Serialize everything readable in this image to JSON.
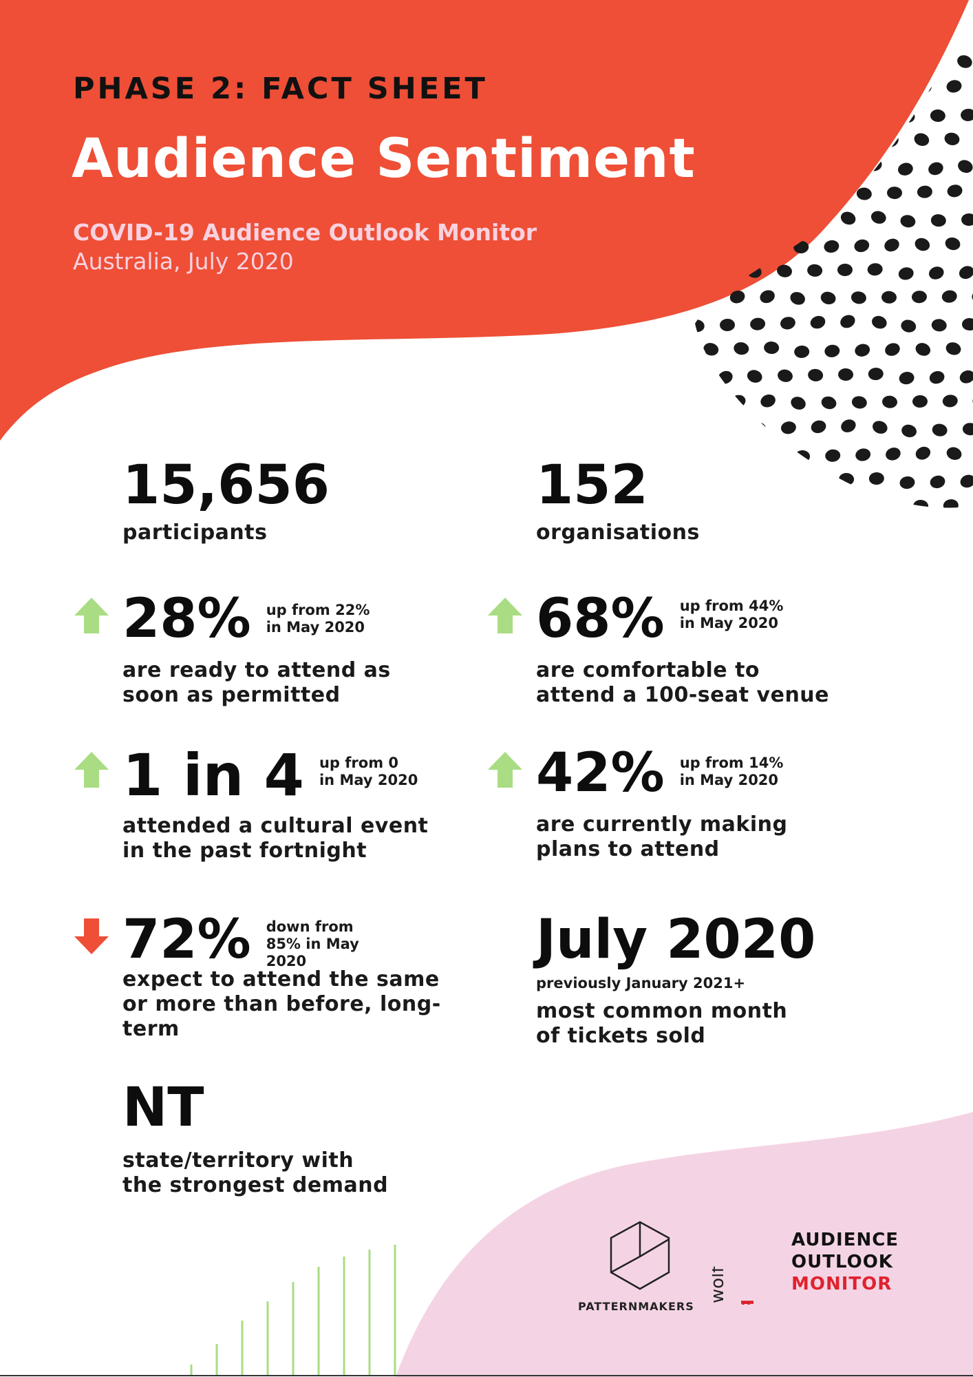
{
  "header": {
    "phase": "PHASE 2: FACT SHEET",
    "title": "Audience Sentiment",
    "subtitle": "COVID-19 Audience Outlook Monitor",
    "date": "Australia, July 2020"
  },
  "colors": {
    "header_bg": "#ee4f36",
    "accent_pink": "#f4d4e4",
    "arrow_up": "#a9dc83",
    "arrow_down": "#ee4f36",
    "text": "#0d0d0d"
  },
  "stats": {
    "participants": {
      "value": "15,656",
      "label": "participants"
    },
    "organisations": {
      "value": "152",
      "label": "organisations"
    },
    "ready": {
      "value": "28%",
      "change": "up from 22%\nin May 2020",
      "label": "are ready to attend as\nsoon as permitted",
      "trend": "up"
    },
    "comfortable": {
      "value": "68%",
      "change": "up from 44%\nin May 2020",
      "label": "are comfortable to\nattend a 100-seat venue",
      "trend": "up"
    },
    "attended": {
      "value": "1 in 4",
      "change": "up from 0\nin May 2020",
      "label": "attended a cultural event\nin the past fortnight",
      "trend": "up"
    },
    "planning": {
      "value": "42%",
      "change": "up from 14%\nin May 2020",
      "label": "are currently making\nplans to attend",
      "trend": "up"
    },
    "expect": {
      "value": "72%",
      "change": "down from\n85% in May\n2020",
      "label": "expect to attend the same\nor more than before, long-\nterm",
      "trend": "down"
    },
    "month": {
      "value": "July 2020",
      "note": "previously January 2021+",
      "label": "most common month\nof tickets sold"
    },
    "state": {
      "value": "NT",
      "label": "state/territory with\nthe strongest demand"
    }
  },
  "logos": {
    "patternmakers": "PATTERNMAKERS",
    "wolfbrown": "wolfbrown",
    "aom": {
      "line1": "AUDIENCE",
      "line2": "OUTLOOK",
      "line3": "MONITOR"
    }
  }
}
